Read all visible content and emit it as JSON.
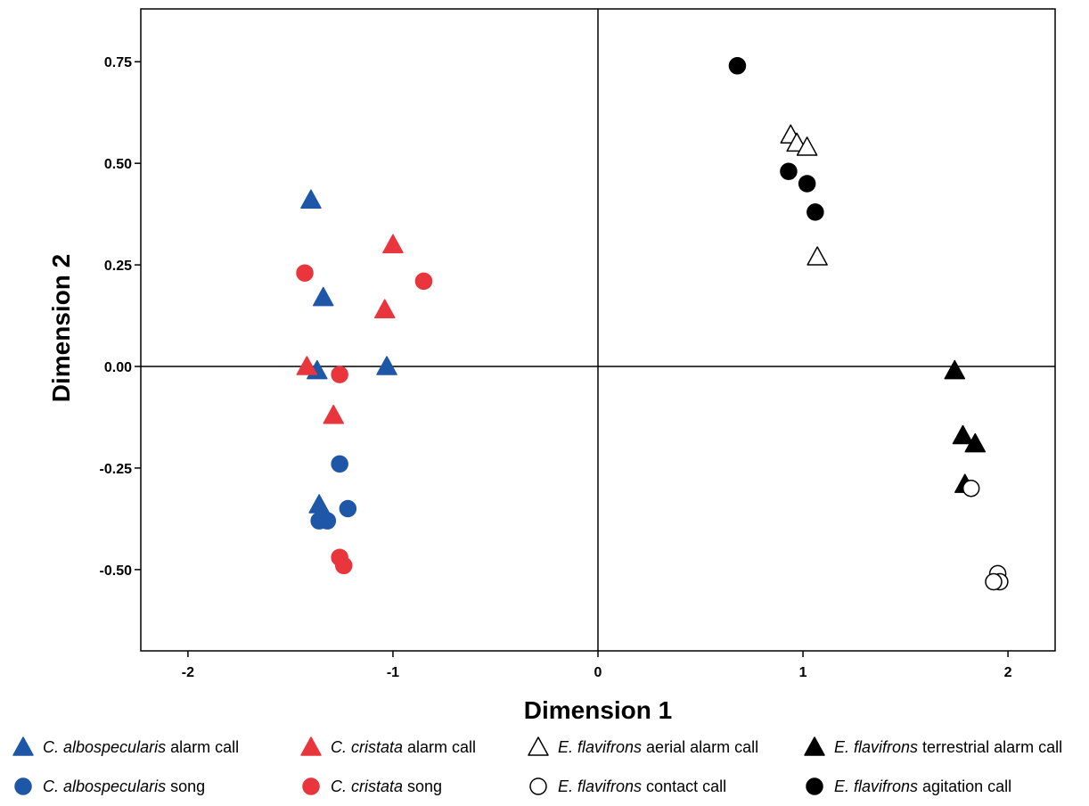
{
  "chart_data": {
    "type": "scatter",
    "xlabel": "Dimension 1",
    "ylabel": "Dimension 2",
    "xlim": [
      -2.23,
      2.23
    ],
    "ylim": [
      -0.7,
      0.88
    ],
    "x_ticks": [
      -2,
      -1,
      0,
      1,
      2
    ],
    "x_tick_labels": [
      "-2",
      "-1",
      "0",
      "1",
      "2"
    ],
    "y_ticks": [
      0.75,
      0.5,
      0.25,
      0.0,
      -0.25,
      -0.5
    ],
    "y_tick_labels": [
      "0.75",
      "0.50",
      "0.25",
      "0.00",
      "-0.25",
      "-0.50"
    ],
    "reference_lines": {
      "x": 0,
      "y": 0
    },
    "grid": false,
    "legend_position": "bottom",
    "series": [
      {
        "species": "C. albospecularis",
        "call": "alarm call",
        "marker": "triangle",
        "fill": "#1f57a8",
        "stroke": "#1f57a8",
        "points": [
          [
            -1.4,
            0.41
          ],
          [
            -1.34,
            0.17
          ],
          [
            -1.37,
            -0.01
          ],
          [
            -1.03,
            0.0
          ],
          [
            -1.36,
            -0.34
          ]
        ]
      },
      {
        "species": "C. cristata",
        "call": "alarm call",
        "marker": "triangle",
        "fill": "#e8363c",
        "stroke": "#e8363c",
        "points": [
          [
            -1.0,
            0.3
          ],
          [
            -1.04,
            0.14
          ],
          [
            -1.42,
            0.0
          ],
          [
            -1.29,
            -0.12
          ]
        ]
      },
      {
        "species": "E. flavifrons",
        "call": "aerial alarm call",
        "marker": "triangle",
        "fill": "#ffffff",
        "stroke": "#000000",
        "points": [
          [
            0.94,
            0.57
          ],
          [
            0.97,
            0.55
          ],
          [
            1.02,
            0.54
          ],
          [
            1.07,
            0.27
          ]
        ]
      },
      {
        "species": "E. flavifrons",
        "call": "terrestrial alarm call",
        "marker": "triangle",
        "fill": "#000000",
        "stroke": "#000000",
        "points": [
          [
            1.74,
            -0.01
          ],
          [
            1.78,
            -0.17
          ],
          [
            1.84,
            -0.19
          ],
          [
            1.79,
            -0.29
          ]
        ]
      },
      {
        "species": "C. albospecularis",
        "call": "song",
        "marker": "circle",
        "fill": "#1f57a8",
        "stroke": "#1f57a8",
        "points": [
          [
            -1.26,
            -0.24
          ],
          [
            -1.22,
            -0.35
          ],
          [
            -1.32,
            -0.38
          ],
          [
            -1.36,
            -0.38
          ]
        ]
      },
      {
        "species": "C. cristata",
        "call": "song",
        "marker": "circle",
        "fill": "#e8363c",
        "stroke": "#e8363c",
        "points": [
          [
            -1.43,
            0.23
          ],
          [
            -0.85,
            0.21
          ],
          [
            -1.26,
            -0.02
          ],
          [
            -1.26,
            -0.47
          ],
          [
            -1.24,
            -0.49
          ]
        ]
      },
      {
        "species": "E. flavifrons",
        "call": "contact call",
        "marker": "circle",
        "fill": "#ffffff",
        "stroke": "#000000",
        "points": [
          [
            1.82,
            -0.3
          ],
          [
            1.95,
            -0.51
          ],
          [
            1.96,
            -0.53
          ],
          [
            1.93,
            -0.53
          ]
        ]
      },
      {
        "species": "E. flavifrons",
        "call": "agitation call",
        "marker": "circle",
        "fill": "#000000",
        "stroke": "#000000",
        "points": [
          [
            0.68,
            0.74
          ],
          [
            0.93,
            0.48
          ],
          [
            1.02,
            0.45
          ],
          [
            1.06,
            0.38
          ]
        ]
      }
    ]
  }
}
